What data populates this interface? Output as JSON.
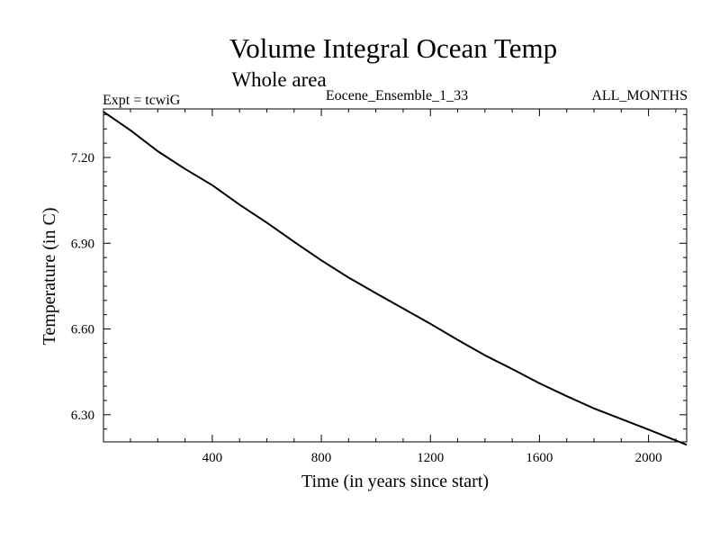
{
  "chart_data": {
    "type": "line",
    "title": "Volume Integral Ocean Temp",
    "subtitle": "Whole area",
    "header_left": "Expt = tcwiG",
    "header_center": "Eocene_Ensemble_1_33",
    "header_right": "ALL_MONTHS",
    "xlabel": "Time (in years since start)",
    "ylabel": "Temperature (in C)",
    "xlim": [
      1,
      2140
    ],
    "ylim": [
      6.205,
      7.37
    ],
    "x_ticks": [
      400,
      800,
      1200,
      1600,
      2000
    ],
    "x_tick_labels": [
      "400",
      "800",
      "1200",
      "1600",
      "2000"
    ],
    "y_ticks": [
      6.3,
      6.6,
      6.9,
      7.2
    ],
    "y_tick_labels": [
      "6.30",
      "6.60",
      "6.90",
      "7.20"
    ],
    "grid": false,
    "series": [
      {
        "x": [
          1,
          100,
          200,
          300,
          400,
          500,
          600,
          700,
          800,
          900,
          1000,
          1100,
          1200,
          1300,
          1400,
          1500,
          1600,
          1700,
          1800,
          1900,
          2000,
          2100,
          2140
        ],
        "y": [
          7.36,
          7.295,
          7.222,
          7.16,
          7.103,
          7.035,
          6.972,
          6.905,
          6.84,
          6.78,
          6.725,
          6.672,
          6.618,
          6.562,
          6.508,
          6.46,
          6.41,
          6.365,
          6.322,
          6.285,
          6.248,
          6.21,
          6.195
        ]
      }
    ]
  }
}
